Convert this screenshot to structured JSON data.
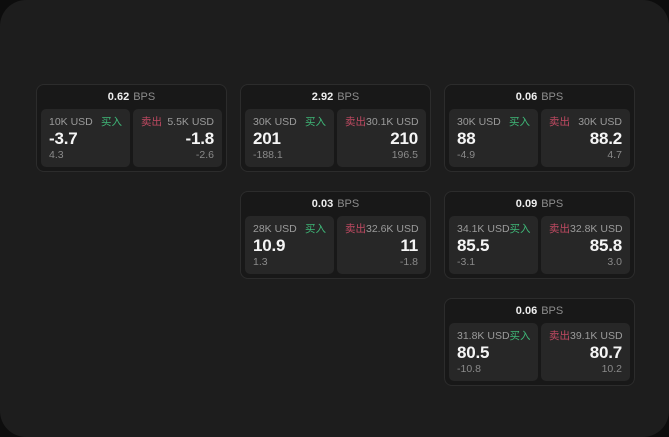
{
  "labels": {
    "buy": "买入",
    "sell": "卖出",
    "bps_unit": "BPS"
  },
  "colors": {
    "buy_green": "#3fb878",
    "sell_red": "#c04a62",
    "surface": "#1d1d1d",
    "card_bg": "#181818",
    "panel_bg": "#272727"
  },
  "cards": [
    {
      "bps": "0.62",
      "buy": {
        "amount": "10K USD",
        "price": "-3.7",
        "delta": "4.3"
      },
      "sell": {
        "amount": "5.5K USD",
        "price": "-1.8",
        "delta": "-2.6"
      }
    },
    {
      "bps": "2.92",
      "buy": {
        "amount": "30K USD",
        "price": "201",
        "delta": "-188.1"
      },
      "sell": {
        "amount": "30.1K USD",
        "price": "210",
        "delta": "196.5"
      }
    },
    {
      "bps": "0.06",
      "buy": {
        "amount": "30K USD",
        "price": "88",
        "delta": "-4.9"
      },
      "sell": {
        "amount": "30K USD",
        "price": "88.2",
        "delta": "4.7"
      }
    },
    {
      "bps": "0.03",
      "buy": {
        "amount": "28K USD",
        "price": "10.9",
        "delta": "1.3"
      },
      "sell": {
        "amount": "32.6K USD",
        "price": "11",
        "delta": "-1.8"
      }
    },
    {
      "bps": "0.09",
      "buy": {
        "amount": "34.1K USD",
        "price": "85.5",
        "delta": "-3.1"
      },
      "sell": {
        "amount": "32.8K USD",
        "price": "85.8",
        "delta": "3.0"
      }
    },
    {
      "bps": "0.06",
      "buy": {
        "amount": "31.8K USD",
        "price": "80.5",
        "delta": "-10.8"
      },
      "sell": {
        "amount": "39.1K USD",
        "price": "80.7",
        "delta": "10.2"
      }
    }
  ]
}
